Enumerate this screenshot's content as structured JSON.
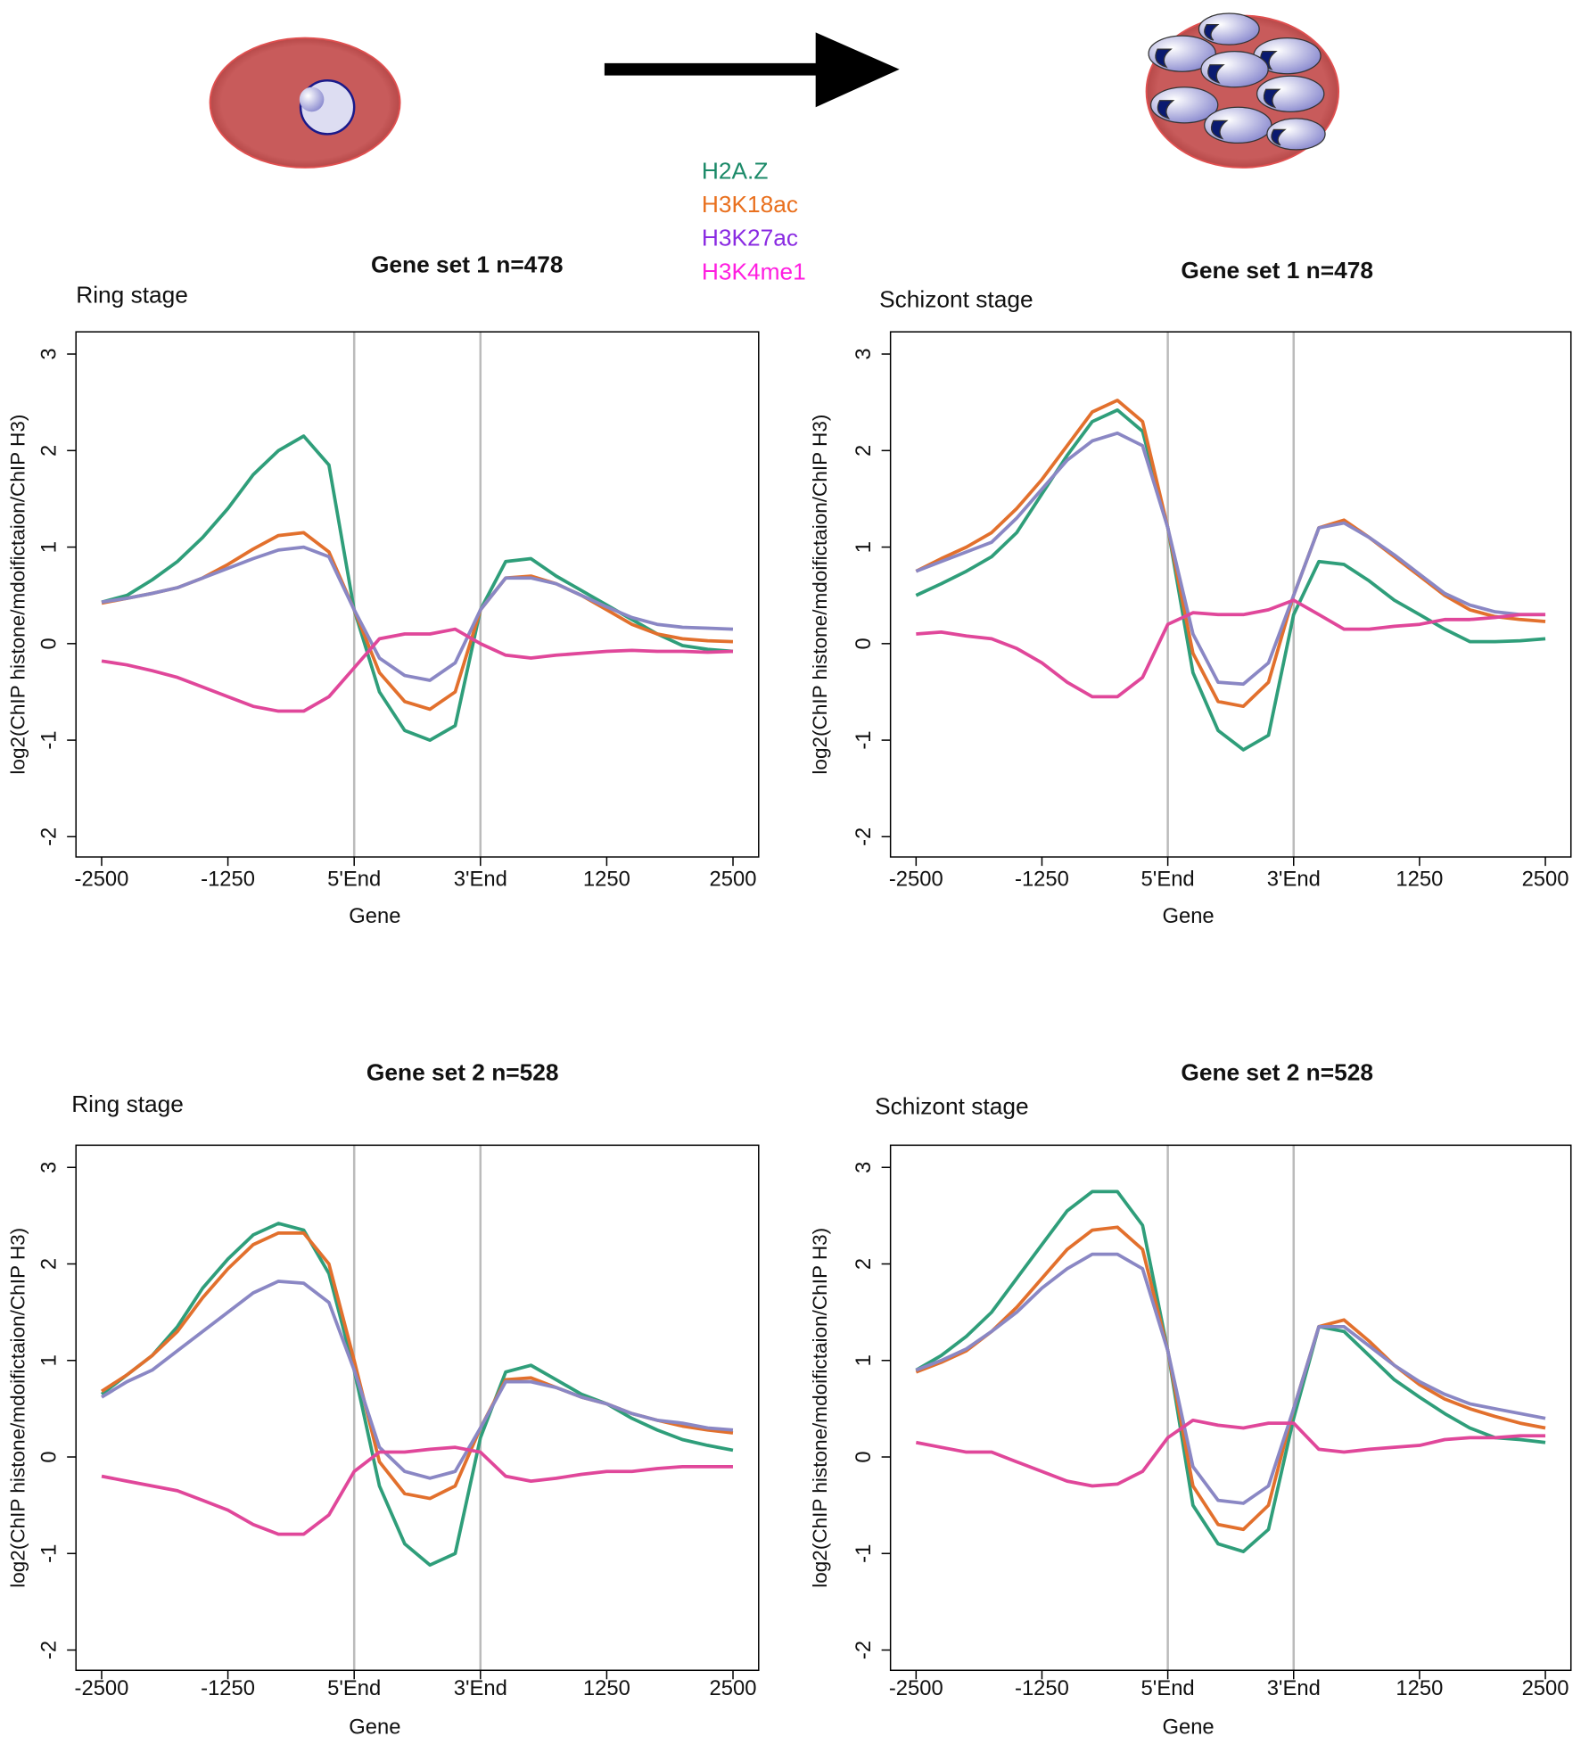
{
  "chart_data": [
    {
      "type": "line",
      "title": "Gene set 1 n=478",
      "subtitle": "Ring stage",
      "xlabel": "Gene",
      "ylabel": "log2(ChIP histone/mdoifictaion/ChIP H3)",
      "xlim": [
        -2754,
        4004
      ],
      "ylim": [
        -2.21,
        3.23
      ],
      "xticks": [
        -2500,
        -1250,
        {
          "value": 0,
          "label": "5'End"
        },
        {
          "value": 1250,
          "label": "3'End"
        },
        {
          "value": 2500,
          "label": "1250"
        },
        {
          "value": 3750,
          "label": "2500"
        }
      ],
      "yticks": [
        -2,
        -1,
        0,
        1,
        2,
        3
      ],
      "vlines": [
        0,
        1250
      ],
      "x": [
        -2500,
        -2250,
        -2000,
        -1750,
        -1500,
        -1250,
        -1000,
        -750,
        -500,
        -250,
        0,
        250,
        500,
        750,
        1000,
        1250,
        1500,
        1750,
        2000,
        2250,
        2500,
        2750,
        3000,
        3250,
        3500,
        3750
      ],
      "series": [
        {
          "name": "H2A.Z",
          "color": "#2f9e7a",
          "label_color": "#1b8a68",
          "values": [
            0.43,
            0.5,
            0.66,
            0.85,
            1.1,
            1.4,
            1.75,
            2.0,
            2.15,
            1.85,
            0.35,
            -0.5,
            -0.9,
            -1.0,
            -0.85,
            0.35,
            0.85,
            0.88,
            0.7,
            0.55,
            0.4,
            0.25,
            0.1,
            -0.02,
            -0.06,
            -0.08
          ]
        },
        {
          "name": "H3K18ac",
          "color": "#e2702d",
          "label_color": "#e9701e",
          "values": [
            0.42,
            0.47,
            0.52,
            0.58,
            0.68,
            0.82,
            0.98,
            1.12,
            1.15,
            0.95,
            0.35,
            -0.3,
            -0.6,
            -0.68,
            -0.5,
            0.35,
            0.68,
            0.7,
            0.62,
            0.5,
            0.35,
            0.2,
            0.1,
            0.05,
            0.03,
            0.02
          ]
        },
        {
          "name": "H3K27ac",
          "color": "#8a87c4",
          "label_color": "#8a2be2",
          "values": [
            0.43,
            0.47,
            0.52,
            0.58,
            0.68,
            0.78,
            0.88,
            0.97,
            1.0,
            0.9,
            0.35,
            -0.15,
            -0.33,
            -0.38,
            -0.2,
            0.35,
            0.68,
            0.68,
            0.62,
            0.5,
            0.38,
            0.27,
            0.2,
            0.17,
            0.16,
            0.15
          ]
        },
        {
          "name": "H3K4me1",
          "color": "#e0479a",
          "label_color": "#ff1ee0",
          "values": [
            -0.18,
            -0.22,
            -0.28,
            -0.35,
            -0.45,
            -0.55,
            -0.65,
            -0.7,
            -0.7,
            -0.55,
            -0.25,
            0.05,
            0.1,
            0.1,
            0.15,
            0.0,
            -0.12,
            -0.15,
            -0.12,
            -0.1,
            -0.08,
            -0.07,
            -0.08,
            -0.08,
            -0.09,
            -0.08
          ]
        }
      ]
    },
    {
      "type": "line",
      "title": "Gene set 1 n=478",
      "subtitle": "Schizont stage",
      "xlabel": "Gene",
      "ylabel": "log2(ChIP histone/mdoifictaion/ChIP H3)",
      "xlim": [
        -2754,
        4004
      ],
      "ylim": [
        -2.21,
        3.23
      ],
      "xticks": [
        -2500,
        -1250,
        {
          "value": 0,
          "label": "5'End"
        },
        {
          "value": 1250,
          "label": "3'End"
        },
        {
          "value": 2500,
          "label": "1250"
        },
        {
          "value": 3750,
          "label": "2500"
        }
      ],
      "yticks": [
        -2,
        -1,
        0,
        1,
        2,
        3
      ],
      "vlines": [
        0,
        1250
      ],
      "x": [
        -2500,
        -2250,
        -2000,
        -1750,
        -1500,
        -1250,
        -1000,
        -750,
        -500,
        -250,
        0,
        250,
        500,
        750,
        1000,
        1250,
        1500,
        1750,
        2000,
        2250,
        2500,
        2750,
        3000,
        3250,
        3500,
        3750
      ],
      "series": [
        {
          "name": "H2A.Z",
          "color": "#2f9e7a",
          "values": [
            0.5,
            0.62,
            0.75,
            0.9,
            1.15,
            1.55,
            1.95,
            2.3,
            2.42,
            2.2,
            1.2,
            -0.3,
            -0.9,
            -1.1,
            -0.95,
            0.3,
            0.85,
            0.82,
            0.65,
            0.45,
            0.3,
            0.15,
            0.02,
            0.02,
            0.03,
            0.05
          ]
        },
        {
          "name": "H3K18ac",
          "color": "#e2702d",
          "values": [
            0.75,
            0.88,
            1.0,
            1.15,
            1.4,
            1.7,
            2.05,
            2.4,
            2.52,
            2.3,
            1.2,
            -0.1,
            -0.6,
            -0.65,
            -0.4,
            0.5,
            1.2,
            1.28,
            1.1,
            0.9,
            0.7,
            0.5,
            0.35,
            0.28,
            0.25,
            0.23
          ]
        },
        {
          "name": "H3K27ac",
          "color": "#8a87c4",
          "values": [
            0.75,
            0.85,
            0.95,
            1.05,
            1.3,
            1.6,
            1.9,
            2.1,
            2.18,
            2.05,
            1.2,
            0.1,
            -0.4,
            -0.42,
            -0.2,
            0.5,
            1.2,
            1.25,
            1.1,
            0.92,
            0.72,
            0.52,
            0.4,
            0.33,
            0.3,
            0.3
          ]
        },
        {
          "name": "H3K4me1",
          "color": "#e0479a",
          "values": [
            0.1,
            0.12,
            0.08,
            0.05,
            -0.05,
            -0.2,
            -0.4,
            -0.55,
            -0.55,
            -0.35,
            0.2,
            0.32,
            0.3,
            0.3,
            0.35,
            0.45,
            0.3,
            0.15,
            0.15,
            0.18,
            0.2,
            0.25,
            0.25,
            0.27,
            0.3,
            0.3
          ]
        }
      ]
    },
    {
      "type": "line",
      "title": "Gene set 2 n=528",
      "subtitle": "Ring stage",
      "xlabel": "Gene",
      "ylabel": "log2(ChIP histone/mdoifictaion/ChIP H3)",
      "xlim": [
        -2754,
        4004
      ],
      "ylim": [
        -2.21,
        3.23
      ],
      "xticks": [
        -2500,
        -1250,
        {
          "value": 0,
          "label": "5'End"
        },
        {
          "value": 1250,
          "label": "3'End"
        },
        {
          "value": 2500,
          "label": "1250"
        },
        {
          "value": 3750,
          "label": "2500"
        }
      ],
      "yticks": [
        -2,
        -1,
        0,
        1,
        2,
        3
      ],
      "vlines": [
        0,
        1250
      ],
      "x": [
        -2500,
        -2250,
        -2000,
        -1750,
        -1500,
        -1250,
        -1000,
        -750,
        -500,
        -250,
        0,
        250,
        500,
        750,
        1000,
        1250,
        1500,
        1750,
        2000,
        2250,
        2500,
        2750,
        3000,
        3250,
        3500,
        3750
      ],
      "series": [
        {
          "name": "H2A.Z",
          "color": "#2f9e7a",
          "values": [
            0.65,
            0.85,
            1.05,
            1.35,
            1.75,
            2.05,
            2.3,
            2.42,
            2.35,
            1.9,
            0.9,
            -0.3,
            -0.9,
            -1.12,
            -1.0,
            0.2,
            0.88,
            0.95,
            0.8,
            0.65,
            0.55,
            0.4,
            0.28,
            0.18,
            0.12,
            0.07
          ]
        },
        {
          "name": "H3K18ac",
          "color": "#e2702d",
          "values": [
            0.68,
            0.85,
            1.05,
            1.3,
            1.65,
            1.95,
            2.2,
            2.32,
            2.32,
            2.0,
            1.0,
            -0.05,
            -0.38,
            -0.43,
            -0.3,
            0.3,
            0.8,
            0.82,
            0.72,
            0.62,
            0.55,
            0.45,
            0.38,
            0.32,
            0.28,
            0.25
          ]
        },
        {
          "name": "H3K27ac",
          "color": "#8a87c4",
          "values": [
            0.62,
            0.78,
            0.9,
            1.1,
            1.3,
            1.5,
            1.7,
            1.82,
            1.8,
            1.6,
            0.9,
            0.1,
            -0.15,
            -0.22,
            -0.15,
            0.3,
            0.78,
            0.78,
            0.72,
            0.62,
            0.55,
            0.45,
            0.38,
            0.35,
            0.3,
            0.28
          ]
        },
        {
          "name": "H3K4me1",
          "color": "#e0479a",
          "values": [
            -0.2,
            -0.25,
            -0.3,
            -0.35,
            -0.45,
            -0.55,
            -0.7,
            -0.8,
            -0.8,
            -0.6,
            -0.15,
            0.05,
            0.05,
            0.08,
            0.1,
            0.05,
            -0.2,
            -0.25,
            -0.22,
            -0.18,
            -0.15,
            -0.15,
            -0.12,
            -0.1,
            -0.1,
            -0.1
          ]
        }
      ]
    },
    {
      "type": "line",
      "title": "Gene set 2 n=528",
      "subtitle": "Schizont stage",
      "xlabel": "Gene",
      "ylabel": "log2(ChIP histone/mdoifictaion/ChIP H3)",
      "xlim": [
        -2754,
        4004
      ],
      "ylim": [
        -2.21,
        3.23
      ],
      "xticks": [
        -2500,
        -1250,
        {
          "value": 0,
          "label": "5'End"
        },
        {
          "value": 1250,
          "label": "3'End"
        },
        {
          "value": 2500,
          "label": "1250"
        },
        {
          "value": 3750,
          "label": "2500"
        }
      ],
      "yticks": [
        -2,
        -1,
        0,
        1,
        2,
        3
      ],
      "vlines": [
        0,
        1250
      ],
      "x": [
        -2500,
        -2250,
        -2000,
        -1750,
        -1500,
        -1250,
        -1000,
        -750,
        -500,
        -250,
        0,
        250,
        500,
        750,
        1000,
        1250,
        1500,
        1750,
        2000,
        2250,
        2500,
        2750,
        3000,
        3250,
        3500,
        3750
      ],
      "series": [
        {
          "name": "H2A.Z",
          "color": "#2f9e7a",
          "values": [
            0.9,
            1.05,
            1.25,
            1.5,
            1.85,
            2.2,
            2.55,
            2.75,
            2.75,
            2.4,
            1.1,
            -0.5,
            -0.9,
            -0.98,
            -0.75,
            0.4,
            1.35,
            1.3,
            1.05,
            0.8,
            0.62,
            0.45,
            0.3,
            0.2,
            0.18,
            0.15
          ]
        },
        {
          "name": "H3K18ac",
          "color": "#e2702d",
          "values": [
            0.88,
            0.98,
            1.1,
            1.3,
            1.55,
            1.85,
            2.15,
            2.35,
            2.38,
            2.15,
            1.1,
            -0.3,
            -0.7,
            -0.75,
            -0.5,
            0.5,
            1.35,
            1.42,
            1.2,
            0.95,
            0.75,
            0.6,
            0.5,
            0.42,
            0.35,
            0.3
          ]
        },
        {
          "name": "H3K27ac",
          "color": "#8a87c4",
          "values": [
            0.9,
            1.0,
            1.12,
            1.3,
            1.5,
            1.75,
            1.95,
            2.1,
            2.1,
            1.95,
            1.1,
            -0.1,
            -0.45,
            -0.48,
            -0.3,
            0.5,
            1.35,
            1.35,
            1.15,
            0.95,
            0.78,
            0.65,
            0.55,
            0.5,
            0.45,
            0.4
          ]
        },
        {
          "name": "H3K4me1",
          "color": "#e0479a",
          "values": [
            0.15,
            0.1,
            0.05,
            0.05,
            -0.05,
            -0.15,
            -0.25,
            -0.3,
            -0.28,
            -0.15,
            0.2,
            0.38,
            0.33,
            0.3,
            0.35,
            0.35,
            0.08,
            0.05,
            0.08,
            0.1,
            0.12,
            0.18,
            0.2,
            0.2,
            0.22,
            0.22
          ]
        }
      ]
    }
  ]
}
